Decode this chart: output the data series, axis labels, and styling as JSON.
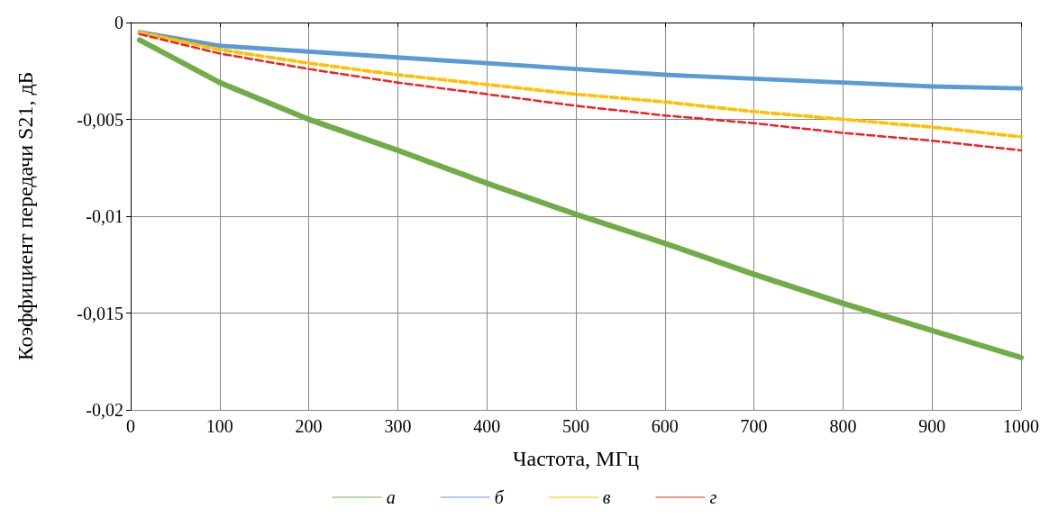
{
  "chart_data": {
    "type": "line",
    "xlabel": "Частота, МГц",
    "ylabel": "Коэффициент передачи S21, дБ",
    "xlim": [
      0,
      1000
    ],
    "xticks": [
      0,
      100,
      200,
      300,
      400,
      500,
      600,
      700,
      800,
      900,
      1000
    ],
    "ylim": [
      -0.02,
      0
    ],
    "yticks": [
      {
        "value": -0.02,
        "label": "-0,02"
      },
      {
        "value": -0.015,
        "label": "-0,015"
      },
      {
        "value": -0.01,
        "label": "-0,01"
      },
      {
        "value": -0.005,
        "label": "-0,005"
      },
      {
        "value": 0,
        "label": "0"
      }
    ],
    "x": [
      10,
      100,
      200,
      300,
      400,
      500,
      600,
      700,
      800,
      900,
      1000
    ],
    "series": [
      {
        "name": "а",
        "color": "#70ad47",
        "line_style": "solid",
        "values": [
          -0.0009,
          -0.0031,
          -0.005,
          -0.0066,
          -0.0083,
          -0.0099,
          -0.0114,
          -0.013,
          -0.0145,
          -0.0159,
          -0.0173
        ]
      },
      {
        "name": "б",
        "color": "#5b9bd5",
        "line_style": "solid",
        "values": [
          -0.0005,
          -0.0012,
          -0.0015,
          -0.0018,
          -0.0021,
          -0.0024,
          -0.0027,
          -0.0029,
          -0.0031,
          -0.0033,
          -0.0034
        ]
      },
      {
        "name": "в",
        "color": "#ffc000",
        "line_style": "dashed",
        "values": [
          -0.0005,
          -0.0014,
          -0.0021,
          -0.0027,
          -0.0032,
          -0.0037,
          -0.0041,
          -0.0046,
          -0.005,
          -0.0054,
          -0.0059
        ]
      },
      {
        "name": "г",
        "color": "#ee2222",
        "line_style": "dashed",
        "values": [
          -0.0006,
          -0.0016,
          -0.0024,
          -0.0031,
          -0.0037,
          -0.0043,
          -0.0048,
          -0.0052,
          -0.0057,
          -0.0061,
          -0.0066
        ]
      }
    ],
    "grid": true,
    "legend": "bottom",
    "marker": "none"
  }
}
